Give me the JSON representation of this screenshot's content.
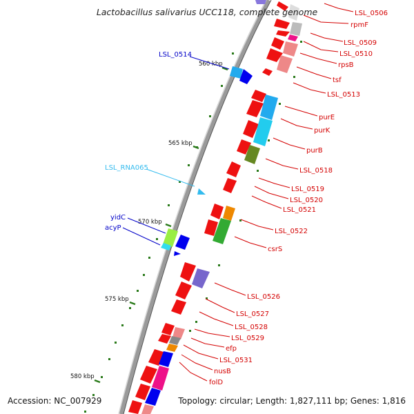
{
  "title": "Lactobacillus salivarius UCC118, complete genome",
  "footer": {
    "accession": "Accession: NC_007929",
    "summary": "Topology: circular; Length: 1,827,111 bp; Genes: 1,816"
  },
  "colors": {
    "backbone": "#9a9a9a",
    "gene_default": "#ee1111",
    "label_red": "#d40000",
    "label_navy": "#0000c8",
    "label_cyan": "#33bbee",
    "tick": "#2a7a1a"
  },
  "scale_labels": [
    "560 kbp",
    "565 kbp",
    "570 kbp",
    "575 kbp",
    "580 kbp"
  ],
  "gene_labels": [
    {
      "text": "LSL_0506",
      "color": "red"
    },
    {
      "text": "rpmF",
      "color": "red"
    },
    {
      "text": "LSL_0509",
      "color": "red"
    },
    {
      "text": "LSL_0510",
      "color": "red"
    },
    {
      "text": "rpsB",
      "color": "red"
    },
    {
      "text": "tsf",
      "color": "red"
    },
    {
      "text": "LSL_0513",
      "color": "red"
    },
    {
      "text": "purE",
      "color": "red"
    },
    {
      "text": "purK",
      "color": "red"
    },
    {
      "text": "purB",
      "color": "red"
    },
    {
      "text": "LSL_0518",
      "color": "red"
    },
    {
      "text": "LSL_0519",
      "color": "red"
    },
    {
      "text": "LSL_0520",
      "color": "red"
    },
    {
      "text": "LSL_0521",
      "color": "red"
    },
    {
      "text": "LSL_0522",
      "color": "red"
    },
    {
      "text": "csrS",
      "color": "red"
    },
    {
      "text": "LSL_0526",
      "color": "red"
    },
    {
      "text": "LSL_0527",
      "color": "red"
    },
    {
      "text": "LSL_0528",
      "color": "red"
    },
    {
      "text": "LSL_0529",
      "color": "red"
    },
    {
      "text": "efp",
      "color": "red"
    },
    {
      "text": "LSL_0531",
      "color": "red"
    },
    {
      "text": "nusB",
      "color": "red"
    },
    {
      "text": "folD",
      "color": "red"
    },
    {
      "text": "LSL_0514",
      "color": "navy"
    },
    {
      "text": "LSL_RNA065",
      "color": "cyan"
    },
    {
      "text": "yidC",
      "color": "navy"
    },
    {
      "text": "acyP",
      "color": "navy"
    }
  ]
}
